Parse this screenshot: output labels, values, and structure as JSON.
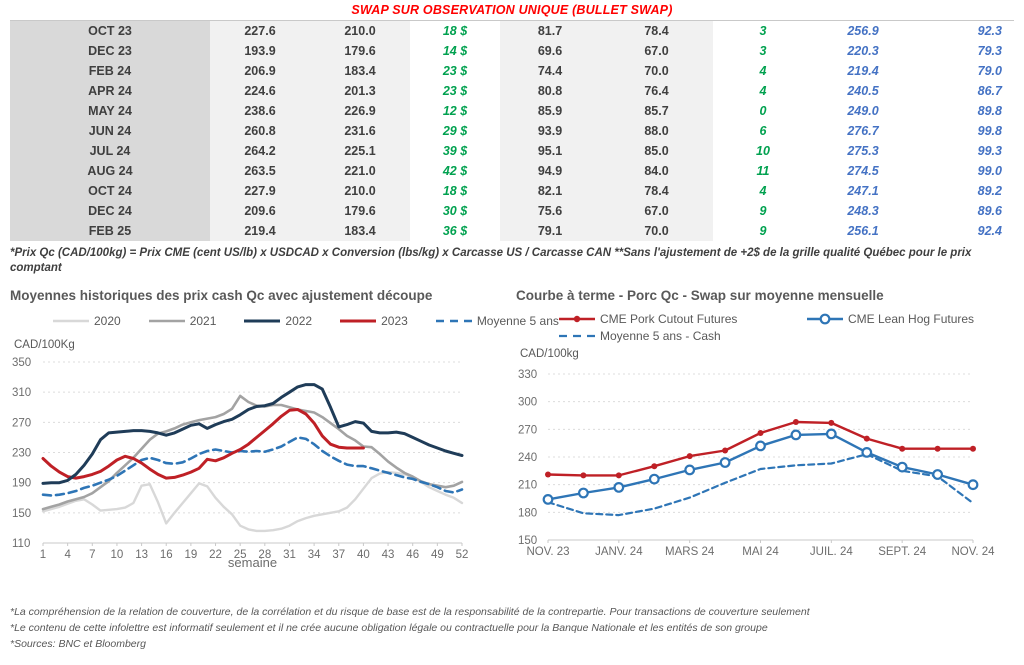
{
  "table": {
    "title": "SWAP SUR OBSERVATION UNIQUE (BULLET SWAP)",
    "rows": [
      [
        "OCT 23",
        "227.6",
        "210.0",
        "18 $",
        "81.7",
        "78.4",
        "3",
        "256.9",
        "92.3"
      ],
      [
        "DEC 23",
        "193.9",
        "179.6",
        "14 $",
        "69.6",
        "67.0",
        "3",
        "220.3",
        "79.3"
      ],
      [
        "FEB 24",
        "206.9",
        "183.4",
        "23 $",
        "74.4",
        "70.0",
        "4",
        "219.4",
        "79.0"
      ],
      [
        "APR 24",
        "224.6",
        "201.3",
        "23 $",
        "80.8",
        "76.4",
        "4",
        "240.5",
        "86.7"
      ],
      [
        "MAY 24",
        "238.6",
        "226.9",
        "12 $",
        "85.9",
        "85.7",
        "0",
        "249.0",
        "89.8"
      ],
      [
        "JUN 24",
        "260.8",
        "231.6",
        "29 $",
        "93.9",
        "88.0",
        "6",
        "276.7",
        "99.8"
      ],
      [
        "JUL 24",
        "264.2",
        "225.1",
        "39 $",
        "95.1",
        "85.0",
        "10",
        "275.3",
        "99.3"
      ],
      [
        "AUG 24",
        "263.5",
        "221.0",
        "42 $",
        "94.9",
        "84.0",
        "11",
        "274.5",
        "99.0"
      ],
      [
        "OCT 24",
        "227.9",
        "210.0",
        "18 $",
        "82.1",
        "78.4",
        "4",
        "247.1",
        "89.2"
      ],
      [
        "DEC 24",
        "209.6",
        "179.6",
        "30 $",
        "75.6",
        "67.0",
        "9",
        "248.3",
        "89.6"
      ],
      [
        "FEB 25",
        "219.4",
        "183.4",
        "36 $",
        "79.1",
        "70.0",
        "9",
        "256.1",
        "92.4"
      ]
    ],
    "footnote": "*Prix Qc (CAD/100kg) = Prix CME (cent US/lb) x USDCAD x Conversion (lbs/kg) x Carcasse US / Carcasse CAN **Sans l'ajustement de +2$ de la grille qualité Québec pour le prix comptant"
  },
  "colors": {
    "title_red": "#ff0000",
    "green": "#00a14f",
    "blue": "#4472c4",
    "navy": "#1f3c58",
    "red_line": "#bf2026",
    "steel_blue": "#2e75b6",
    "gray_2021": "#a3a3a3",
    "gray_2020": "#d8d8d8"
  },
  "chart_data": [
    {
      "type": "line",
      "title": "Moyennes historiques des prix cash Qc avec ajustement découpe",
      "unit_label": "CAD/100Kg",
      "xlabel": "semaine",
      "ylim": [
        110,
        350
      ],
      "yticks": [
        110,
        150,
        190,
        230,
        270,
        310,
        350
      ],
      "x_range": [
        1,
        52
      ],
      "xticks": [
        [
          1,
          "1"
        ],
        [
          4,
          "4"
        ],
        [
          7,
          "7"
        ],
        [
          10,
          "10"
        ],
        [
          13,
          "13"
        ],
        [
          16,
          "16"
        ],
        [
          19,
          "19"
        ],
        [
          22,
          "22"
        ],
        [
          25,
          "25"
        ],
        [
          28,
          "28"
        ],
        [
          31,
          "31"
        ],
        [
          34,
          "34"
        ],
        [
          37,
          "37"
        ],
        [
          40,
          "40"
        ],
        [
          43,
          "43"
        ],
        [
          46,
          "46"
        ],
        [
          49,
          "49"
        ],
        [
          52,
          "52"
        ]
      ],
      "grid": "dashed",
      "legend_position": "top",
      "series": [
        {
          "name": "2020",
          "color": "#d8d8d8",
          "width": 2.4,
          "x0": 1,
          "z": 1,
          "values": [
            152,
            155,
            158,
            162,
            166,
            168,
            161,
            153,
            154,
            155,
            157,
            163,
            186,
            188,
            164,
            136,
            150,
            163,
            176,
            189,
            185,
            170,
            158,
            148,
            133,
            128,
            126,
            126,
            127,
            129,
            133,
            139,
            143,
            146,
            148,
            150,
            152,
            157,
            168,
            182,
            196,
            202,
            204,
            203,
            201,
            198,
            191,
            184,
            179,
            174,
            170,
            163
          ]
        },
        {
          "name": "2021",
          "color": "#a3a3a3",
          "width": 2.6,
          "x0": 1,
          "z": 2,
          "values": [
            155,
            158,
            161,
            165,
            168,
            171,
            176,
            184,
            192,
            203,
            213,
            223,
            235,
            247,
            255,
            258,
            262,
            267,
            270,
            273,
            275,
            277,
            281,
            288,
            305,
            297,
            292,
            291,
            293,
            293,
            290,
            287,
            285,
            283,
            277,
            269,
            261,
            252,
            246,
            238,
            237,
            228,
            218,
            210,
            203,
            198,
            192,
            188,
            186,
            184,
            186,
            191
          ]
        },
        {
          "name": "2022",
          "color": "#1f3c58",
          "width": 3,
          "x0": 1,
          "z": 5,
          "values": [
            189,
            190,
            190,
            193,
            201,
            213,
            228,
            247,
            256,
            257,
            258,
            259,
            259,
            258,
            256,
            253,
            256,
            261,
            266,
            268,
            262,
            267,
            271,
            274,
            280,
            287,
            291,
            292,
            295,
            303,
            310,
            317,
            320,
            320,
            314,
            290,
            264,
            267,
            271,
            269,
            258,
            256,
            256,
            257,
            255,
            250,
            245,
            240,
            236,
            232,
            229,
            226
          ]
        },
        {
          "name": "2023",
          "color": "#bf2026",
          "width": 3,
          "x0": 1,
          "z": 4,
          "values": [
            222,
            212,
            204,
            198,
            196,
            198,
            201,
            205,
            212,
            220,
            225,
            222,
            216,
            208,
            201,
            196,
            197,
            200,
            204,
            209,
            221,
            219,
            223,
            229,
            234,
            241,
            250,
            259,
            268,
            278,
            286,
            287,
            281,
            269,
            252,
            241,
            237,
            236,
            236,
            236
          ]
        },
        {
          "name": "Moyenne 5 ans",
          "color": "#2e75b6",
          "width": 2.6,
          "dash": "8 5",
          "x0": 1,
          "z": 3,
          "values": [
            174,
            173,
            174,
            176,
            179,
            183,
            186,
            190,
            194,
            199,
            206,
            213,
            220,
            223,
            220,
            216,
            215,
            217,
            222,
            228,
            232,
            234,
            232,
            230,
            232,
            231,
            232,
            231,
            234,
            238,
            244,
            250,
            248,
            241,
            232,
            225,
            219,
            214,
            212,
            212,
            209,
            206,
            203,
            200,
            197,
            195,
            191,
            188,
            184,
            179,
            177,
            181
          ]
        }
      ]
    },
    {
      "type": "line",
      "title": "Courbe à terme - Porc Qc - Swap sur moyenne mensuelle",
      "unit_label": "CAD/100kg",
      "xlabel": "",
      "ylim": [
        150,
        330
      ],
      "yticks": [
        150,
        180,
        210,
        240,
        270,
        300,
        330
      ],
      "x_range": [
        0,
        12
      ],
      "xticks": [
        [
          0,
          "NOV. 23"
        ],
        [
          2,
          "JANV. 24"
        ],
        [
          4,
          "MARS 24"
        ],
        [
          6,
          "MAI 24"
        ],
        [
          8,
          "JUIL. 24"
        ],
        [
          10,
          "SEPT. 24"
        ],
        [
          12,
          "NOV. 24"
        ]
      ],
      "grid": "dashed",
      "legend_position": "top",
      "series": [
        {
          "name": "CME Pork Cutout Futures",
          "color": "#bf2026",
          "width": 2.4,
          "marker": "filled",
          "x0": 0,
          "z": 3,
          "values": [
            221,
            220,
            220,
            230,
            241,
            247,
            266,
            278,
            277,
            260,
            249,
            249,
            249
          ]
        },
        {
          "name": "CME Lean Hog Futures",
          "color": "#2e75b6",
          "width": 2.4,
          "marker": "open",
          "x0": 0,
          "z": 2,
          "values": [
            194,
            201,
            207,
            216,
            226,
            234,
            252,
            264,
            265,
            245,
            229,
            221,
            210
          ]
        },
        {
          "name": "Moyenne 5 ans - Cash",
          "color": "#2e75b6",
          "width": 2.2,
          "dash": "6 4",
          "x0": 0,
          "z": 1,
          "values": [
            191,
            179,
            177,
            184,
            196,
            212,
            227,
            231,
            233,
            243,
            225,
            219,
            190
          ]
        }
      ]
    }
  ],
  "footnotes": [
    "*La compréhension de la relation de couverture, de la corrélation et du risque de base est de la responsabilité de la contrepartie. Pour transactions de couverture seulement",
    "*Le contenu de cette infolettre est informatif seulement et il ne crée aucune obligation légale ou contractuelle pour la Banque Nationale et les entités de son groupe",
    "*Sources: BNC et Bloomberg"
  ]
}
